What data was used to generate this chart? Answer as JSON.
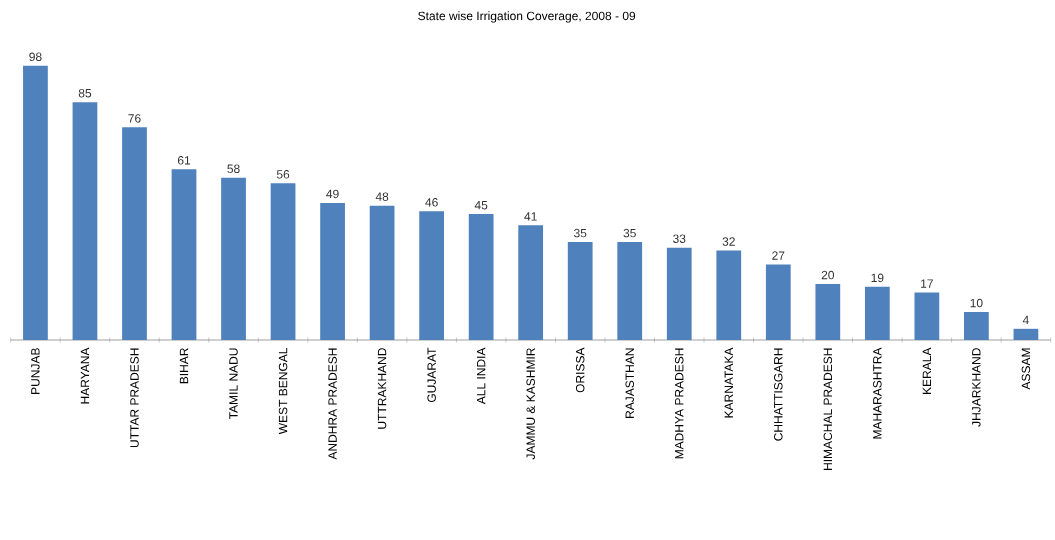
{
  "chart_data": {
    "type": "bar",
    "title": "State wise Irrigation Coverage,  2008 - 09",
    "categories": [
      "PUNJAB",
      "HARYANA",
      "UTTAR PRADESH",
      "BIHAR",
      "TAMIL NADU",
      "WEST BENGAL",
      "ANDHRA PRADESH",
      "UTTRAKHAND",
      "GUJARAT",
      "ALL INDIA",
      "JAMMU & KASHMIR",
      "ORISSA",
      "RAJASTHAN",
      "MADHYA PRADESH",
      "KARNATAKA",
      "CHHATTISGARH",
      "HIMACHAL PRADESH",
      "MAHARASHTRA",
      "KERALA",
      "JHJARKHAND",
      "ASSAM"
    ],
    "values": [
      98,
      85,
      76,
      61,
      58,
      56,
      49,
      48,
      46,
      45,
      41,
      35,
      35,
      33,
      32,
      27,
      20,
      19,
      17,
      10,
      4
    ],
    "color": "#4f81bd",
    "data_labels": true
  }
}
